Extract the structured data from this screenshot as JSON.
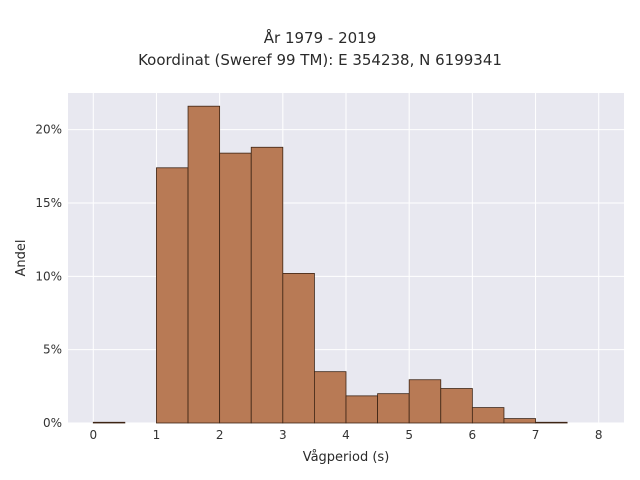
{
  "chart_data": {
    "type": "bar",
    "title": "År 1979 - 2019",
    "subtitle": "Koordinat (Sweref 99 TM): E 354238, N 6199341",
    "xlabel": "Vågperiod (s)",
    "ylabel": "Andel",
    "x_ticks": [
      "0",
      "1",
      "2",
      "3",
      "4",
      "5",
      "6",
      "7",
      "8"
    ],
    "y_ticks": [
      "0%",
      "5%",
      "10%",
      "15%",
      "20%"
    ],
    "xlim": [
      -0.4,
      8.4
    ],
    "ylim": [
      0,
      22.5
    ],
    "bin_width": 0.5,
    "bins": [
      {
        "start": 0.0,
        "value": 0.05
      },
      {
        "start": 0.5,
        "value": 0
      },
      {
        "start": 1.0,
        "value": 17.4
      },
      {
        "start": 1.5,
        "value": 21.6
      },
      {
        "start": 2.0,
        "value": 18.4
      },
      {
        "start": 2.5,
        "value": 18.8
      },
      {
        "start": 3.0,
        "value": 10.2
      },
      {
        "start": 3.5,
        "value": 3.5
      },
      {
        "start": 4.0,
        "value": 1.85
      },
      {
        "start": 4.5,
        "value": 2.0
      },
      {
        "start": 5.0,
        "value": 2.95
      },
      {
        "start": 5.5,
        "value": 2.35
      },
      {
        "start": 6.0,
        "value": 1.05
      },
      {
        "start": 6.5,
        "value": 0.3
      },
      {
        "start": 7.0,
        "value": 0.05
      },
      {
        "start": 7.5,
        "value": 0
      }
    ],
    "bar_color": "#b87a55",
    "bar_edge_color": "#3d2414",
    "background_color": "#e8e8f0",
    "grid": true,
    "legend": "none"
  }
}
